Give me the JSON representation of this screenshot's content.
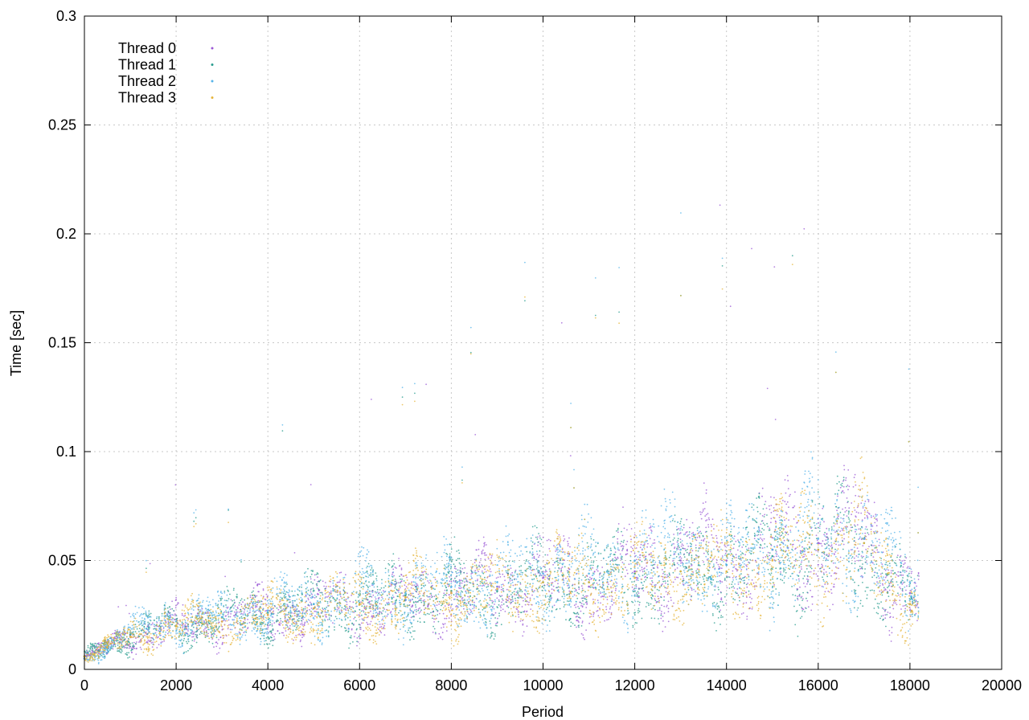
{
  "chart_data": {
    "type": "scatter",
    "xlabel": "Period",
    "ylabel": "Time [sec]",
    "xlim": [
      0,
      20000
    ],
    "ylim": [
      0,
      0.3
    ],
    "x_ticks": [
      "0",
      "2000",
      "4000",
      "6000",
      "8000",
      "10000",
      "12000",
      "14000",
      "16000",
      "18000",
      "20000"
    ],
    "y_ticks": [
      "0",
      "0.05",
      "0.1",
      "0.15",
      "0.2",
      "0.25",
      "0.3"
    ],
    "grid": true,
    "legend_position": "top-left",
    "series": [
      {
        "name": "Thread 0",
        "color": "#9b59d6",
        "x": [
          0,
          500,
          1000,
          2000,
          3000,
          4000,
          5000,
          6000,
          7000,
          8000,
          9000,
          10000,
          11000,
          12000,
          13000,
          14000,
          15000,
          16000,
          17000,
          18000
        ],
        "y": [
          0.005,
          0.01,
          0.015,
          0.02,
          0.022,
          0.025,
          0.028,
          0.03,
          0.032,
          0.035,
          0.038,
          0.042,
          0.038,
          0.045,
          0.05,
          0.05,
          0.055,
          0.058,
          0.06,
          0.035
        ]
      },
      {
        "name": "Thread 1",
        "color": "#2a9d8f",
        "x": [
          0,
          500,
          1000,
          2000,
          3000,
          4000,
          5000,
          6000,
          7000,
          8000,
          9000,
          10000,
          11000,
          12000,
          13000,
          14000,
          15000,
          16000,
          17000,
          18000
        ],
        "y": [
          0.006,
          0.012,
          0.016,
          0.02,
          0.024,
          0.026,
          0.03,
          0.03,
          0.034,
          0.036,
          0.036,
          0.04,
          0.04,
          0.044,
          0.045,
          0.048,
          0.052,
          0.055,
          0.058,
          0.03
        ]
      },
      {
        "name": "Thread 2",
        "color": "#56b4e9",
        "x": [
          0,
          500,
          1000,
          2000,
          3000,
          4000,
          5000,
          6000,
          7000,
          8000,
          9000,
          10000,
          11000,
          12000,
          13000,
          14000,
          15000,
          16000,
          17000,
          18000
        ],
        "y": [
          0.005,
          0.011,
          0.017,
          0.022,
          0.024,
          0.027,
          0.03,
          0.034,
          0.035,
          0.038,
          0.04,
          0.044,
          0.044,
          0.05,
          0.055,
          0.048,
          0.055,
          0.06,
          0.06,
          0.04
        ]
      },
      {
        "name": "Thread 3",
        "color": "#e6b53c",
        "x": [
          0,
          500,
          1000,
          2000,
          3000,
          4000,
          5000,
          6000,
          7000,
          8000,
          9000,
          10000,
          11000,
          12000,
          13000,
          14000,
          15000,
          16000,
          17000,
          18000
        ],
        "y": [
          0.006,
          0.01,
          0.015,
          0.02,
          0.022,
          0.025,
          0.028,
          0.03,
          0.033,
          0.035,
          0.037,
          0.04,
          0.04,
          0.042,
          0.045,
          0.045,
          0.05,
          0.055,
          0.058,
          0.03
        ]
      }
    ]
  }
}
